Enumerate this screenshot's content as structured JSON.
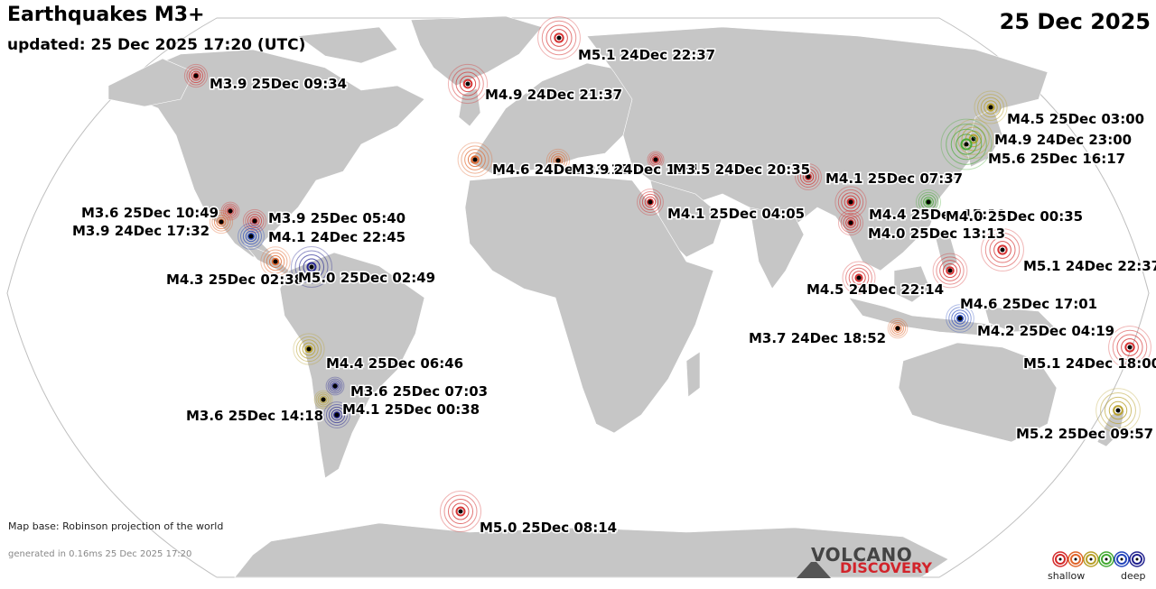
{
  "header": {
    "title": "Earthquakes M3+",
    "updated": "updated: 25 Dec 2025 17:20 (UTC)",
    "date": "25 Dec 2025"
  },
  "footer": {
    "map_base": "Map base: Robinson projection of the world",
    "generated": "generated in 0.16ms 25 Dec 2025 17:20"
  },
  "logo": {
    "line1": "VOLCANO",
    "line2": "DISCOVERY"
  },
  "legend": {
    "shallow": "shallow",
    "deep": "deep",
    "depth_colors": [
      "#d42a2a",
      "#e0652a",
      "#b8a02a",
      "#44aa33",
      "#2244bb",
      "#22228f"
    ]
  },
  "colors": {
    "ocean": "#ffffff",
    "land": "#c6c6c6",
    "border": "#ffffff",
    "outline": "#bfbfbf",
    "shallow": "#d42a2a",
    "orange": "#e0652a",
    "olive": "#b8a02a",
    "green": "#44aa33",
    "blue": "#2244bb",
    "navy": "#22228f"
  },
  "quakes": [
    {
      "label": "M5.1 24Dec 22:37",
      "color": "shallow",
      "mag": 5.1
    },
    {
      "label": "M3.9 25Dec 09:34",
      "color": "shallow",
      "mag": 3.9
    },
    {
      "label": "M4.9 24Dec 21:37",
      "color": "shallow",
      "mag": 4.9
    },
    {
      "label": "M4.5 25Dec 03:00",
      "color": "olive",
      "mag": 4.5
    },
    {
      "label": "M4.9 24Dec 23:00",
      "color": "olive",
      "mag": 4.9
    },
    {
      "label": "M5.6 25Dec 16:17",
      "color": "green",
      "mag": 5.6
    },
    {
      "label": "M4.6 24Dec 23:18",
      "color": "orange",
      "mag": 4.6
    },
    {
      "label": "M3.9 24Dec 18:15",
      "color": "orange",
      "mag": 3.9
    },
    {
      "label": "M3.5 24Dec 20:35",
      "color": "shallow",
      "mag": 3.5
    },
    {
      "label": "M4.1 25Dec 07:37",
      "color": "shallow",
      "mag": 4.1
    },
    {
      "label": "M3.6 25Dec 10:49",
      "color": "shallow",
      "mag": 3.6
    },
    {
      "label": "M3.9 25Dec 05:40",
      "color": "shallow",
      "mag": 3.9
    },
    {
      "label": "M3.9 24Dec 17:32",
      "color": "orange",
      "mag": 3.9
    },
    {
      "label": "M4.1 24Dec 22:45",
      "color": "blue",
      "mag": 4.1
    },
    {
      "label": "M4.1 25Dec 04:05",
      "color": "shallow",
      "mag": 4.1
    },
    {
      "label": "M4.4 25Dec 15:19",
      "color": "shallow",
      "mag": 4.4
    },
    {
      "label": "M4.0 25Dec 00:35",
      "color": "green",
      "mag": 4.0
    },
    {
      "label": "M4.0 25Dec 13:13",
      "color": "shallow",
      "mag": 4.0
    },
    {
      "label": "M5.1 24Dec 22:37",
      "color": "shallow",
      "mag": 5.1
    },
    {
      "label": "M4.3 25Dec 02:38",
      "color": "orange",
      "mag": 4.3
    },
    {
      "label": "M5.0 25Dec 02:49",
      "color": "navy",
      "mag": 5.0
    },
    {
      "label": "M4.5 24Dec 22:14",
      "color": "shallow",
      "mag": 4.5
    },
    {
      "label": "M4.6 25Dec 17:01",
      "color": "shallow",
      "mag": 4.6
    },
    {
      "label": "M4.2 25Dec 04:19",
      "color": "blue",
      "mag": 4.2
    },
    {
      "label": "M3.7 24Dec 18:52",
      "color": "orange",
      "mag": 3.7
    },
    {
      "label": "M4.4 25Dec 06:46",
      "color": "olive",
      "mag": 4.4
    },
    {
      "label": "M5.1 24Dec 18:00",
      "color": "shallow",
      "mag": 5.1
    },
    {
      "label": "M3.6 25Dec 14:18",
      "color": "olive",
      "mag": 3.6
    },
    {
      "label": "M3.6 25Dec 07:03",
      "color": "navy",
      "mag": 3.6
    },
    {
      "label": "M4.1 25Dec 00:38",
      "color": "navy",
      "mag": 4.1
    },
    {
      "label": "M5.2 25Dec 09:57",
      "color": "olive",
      "mag": 5.2
    },
    {
      "label": "M5.0 25Dec 08:14",
      "color": "shallow",
      "mag": 5.0
    }
  ]
}
